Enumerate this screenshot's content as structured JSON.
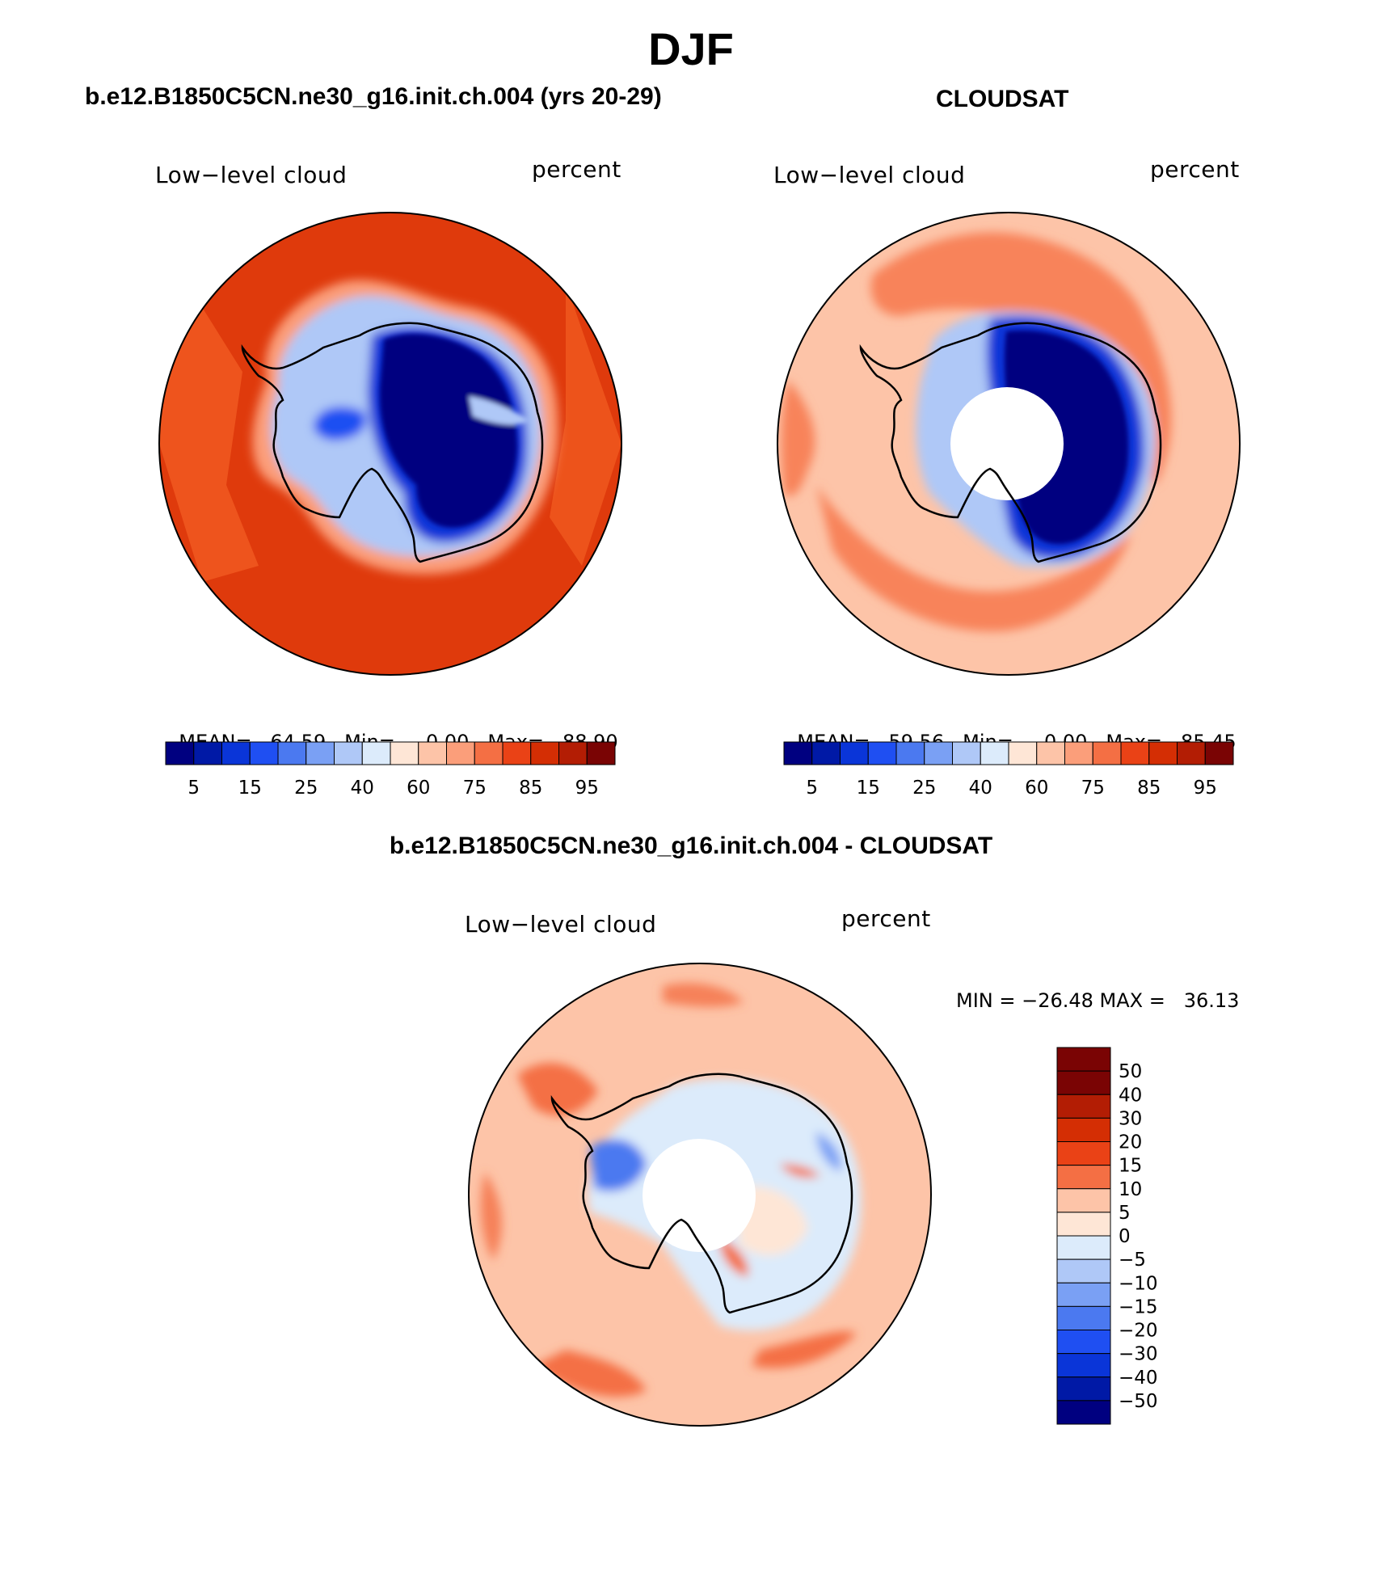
{
  "page_title": "DJF",
  "panels": [
    {
      "title": "b.e12.B1850C5CN.ne30_g16.init.ch.004 (yrs 20-29)",
      "variable_label": "Low−level cloud",
      "units_label": "percent",
      "stats": {
        "mean_label": "MEAN=",
        "mean": "64.59",
        "min_label": "Min=",
        "min": "0.00",
        "max_label": "Max=",
        "max": "88.90"
      },
      "has_pole_hole": false
    },
    {
      "title": "CLOUDSAT",
      "variable_label": "Low−level cloud",
      "units_label": "percent",
      "stats": {
        "mean_label": "MEAN=",
        "mean": "59.56",
        "min_label": "Min=",
        "min": "0.00",
        "max_label": "Max=",
        "max": "85.45"
      },
      "has_pole_hole": true
    },
    {
      "title": "b.e12.B1850C5CN.ne30_g16.init.ch.004 - CLOUDSAT",
      "variable_label": "Low−level cloud",
      "units_label": "percent",
      "stats_text": "MIN = −26.48 MAX =   36.13",
      "has_pole_hole": true
    }
  ],
  "colorbar_abs": {
    "colors": [
      "#000080",
      "#0019a6",
      "#0a35d8",
      "#1f4ff2",
      "#4b79f0",
      "#7aa0f4",
      "#afc8f7",
      "#dcebfb",
      "#fee6d6",
      "#fdc4a8",
      "#fb9e7a",
      "#f46f44",
      "#ea4216",
      "#d42e04",
      "#b31d04",
      "#7a0404"
    ],
    "tick_labels": [
      "5",
      "15",
      "25",
      "40",
      "60",
      "75",
      "85",
      "95"
    ]
  },
  "colorbar_diff": {
    "colors": [
      "#7a0404",
      "#b31d04",
      "#d42e04",
      "#ea4216",
      "#f46f44",
      "#fdc4a8",
      "#fee6d6",
      "#dcebfb",
      "#afc8f7",
      "#7aa0f4",
      "#4b79f0",
      "#1f4ff2",
      "#0a35d8",
      "#0019a6",
      "#000080"
    ],
    "tick_labels": [
      "50",
      "40",
      "30",
      "20",
      "15",
      "10",
      "5",
      "0",
      "−5",
      "−10",
      "−15",
      "−20",
      "−30",
      "−40",
      "−50"
    ]
  },
  "map_colors": {
    "model_ocean": "#df3a0c",
    "model_ocean_outer": "#f0581f",
    "model_ring": "#fb9e7a",
    "model_ice_inner": "#000080",
    "model_ice_mid": "#0a35d8",
    "model_ice_light": "#afc8f7",
    "obs_ocean": "#fdc4a8",
    "obs_ocean_warm": "#f8835a",
    "obs_ice": "#000080",
    "diff_base": "#fdc4a8",
    "diff_warm": "#f46f44",
    "diff_cool": "#afc8f7",
    "diff_neutral": "#dcebfb",
    "coast": "#000000",
    "hole": "#ffffff"
  }
}
